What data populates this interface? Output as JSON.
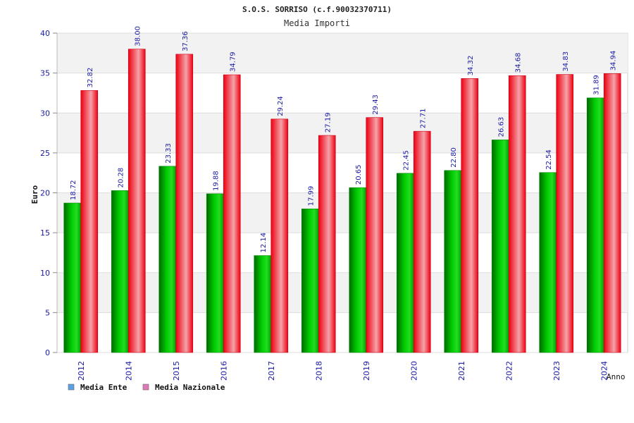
{
  "chart_data": {
    "type": "bar",
    "title": "S.O.S. SORRISO (c.f.90032370711)",
    "subtitle": "Media Importi",
    "ylabel": "Euro",
    "xlabel": "Anno",
    "ylim": [
      0,
      40
    ],
    "yticks": [
      0,
      5,
      10,
      15,
      20,
      25,
      30,
      35,
      40
    ],
    "grid": true,
    "legend_position": "bottom-left",
    "categories": [
      "2012",
      "2014",
      "2015",
      "2016",
      "2017",
      "2018",
      "2019",
      "2020",
      "2021",
      "2022",
      "2023",
      "2024"
    ],
    "series": [
      {
        "name": "Media Ente",
        "color": "#00bb00",
        "legend_color": "#5aa0e6",
        "values": [
          18.72,
          20.28,
          23.33,
          19.88,
          12.14,
          17.99,
          20.65,
          22.45,
          22.8,
          26.63,
          22.54,
          31.89
        ],
        "labels": [
          "18.72",
          "20.28",
          "23.33",
          "19.88",
          "12.14",
          "17.99",
          "20.65",
          "22.45",
          "22.80",
          "26.63",
          "22.54",
          "31.89"
        ]
      },
      {
        "name": "Media Nazionale",
        "color": "#ee1122",
        "legend_color": "#e079b8",
        "values": [
          32.82,
          38.0,
          37.36,
          34.79,
          29.24,
          27.19,
          29.43,
          27.71,
          34.32,
          34.68,
          34.83,
          34.94
        ],
        "labels": [
          "32.82",
          "38.00",
          "37.36",
          "34.79",
          "29.24",
          "27.19",
          "29.43",
          "27.71",
          "34.32",
          "34.68",
          "34.83",
          "34.94"
        ]
      }
    ]
  }
}
